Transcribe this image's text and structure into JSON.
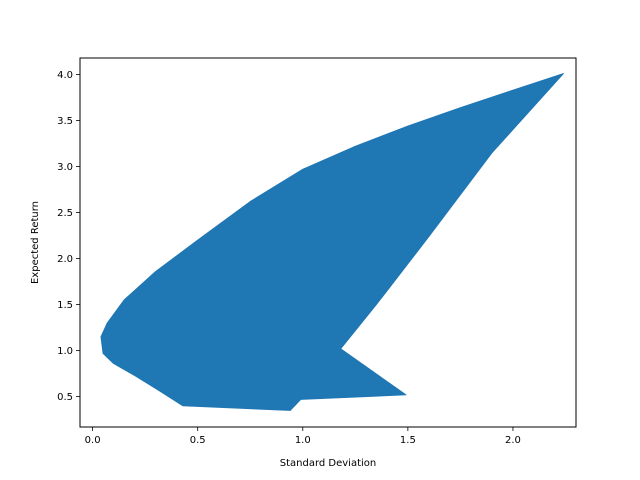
{
  "chart_data": {
    "type": "area",
    "title": "",
    "xlabel": "Standard Deviation",
    "ylabel": "Expected Return",
    "xlim": [
      -0.06,
      2.3
    ],
    "ylim": [
      0.17,
      4.18
    ],
    "x_ticks": [
      0.0,
      0.5,
      1.0,
      1.5,
      2.0
    ],
    "x_tick_labels": [
      "0.0",
      "0.5",
      "1.0",
      "1.5",
      "2.0"
    ],
    "y_ticks": [
      0.5,
      1.0,
      1.5,
      2.0,
      2.5,
      3.0,
      3.5,
      4.0
    ],
    "y_tick_labels": [
      "0.5",
      "1.0",
      "1.5",
      "2.0",
      "2.5",
      "3.0",
      "3.5",
      "4.0"
    ],
    "grid": false,
    "series": [
      {
        "color": "#1f77b4",
        "x": [
          2.24,
          2.0,
          1.75,
          1.5,
          1.25,
          1.0,
          0.75,
          0.5,
          0.3,
          0.15,
          0.07,
          0.04,
          0.05,
          0.1,
          0.2,
          0.3,
          0.43,
          0.94,
          0.99,
          1.49,
          1.18,
          1.35,
          1.6,
          1.9,
          2.24
        ],
        "y": [
          4.01,
          3.83,
          3.64,
          3.44,
          3.22,
          2.97,
          2.62,
          2.2,
          1.86,
          1.55,
          1.3,
          1.15,
          0.97,
          0.86,
          0.73,
          0.59,
          0.4,
          0.35,
          0.47,
          0.52,
          1.02,
          1.5,
          2.24,
          3.15,
          4.01
        ]
      }
    ]
  }
}
